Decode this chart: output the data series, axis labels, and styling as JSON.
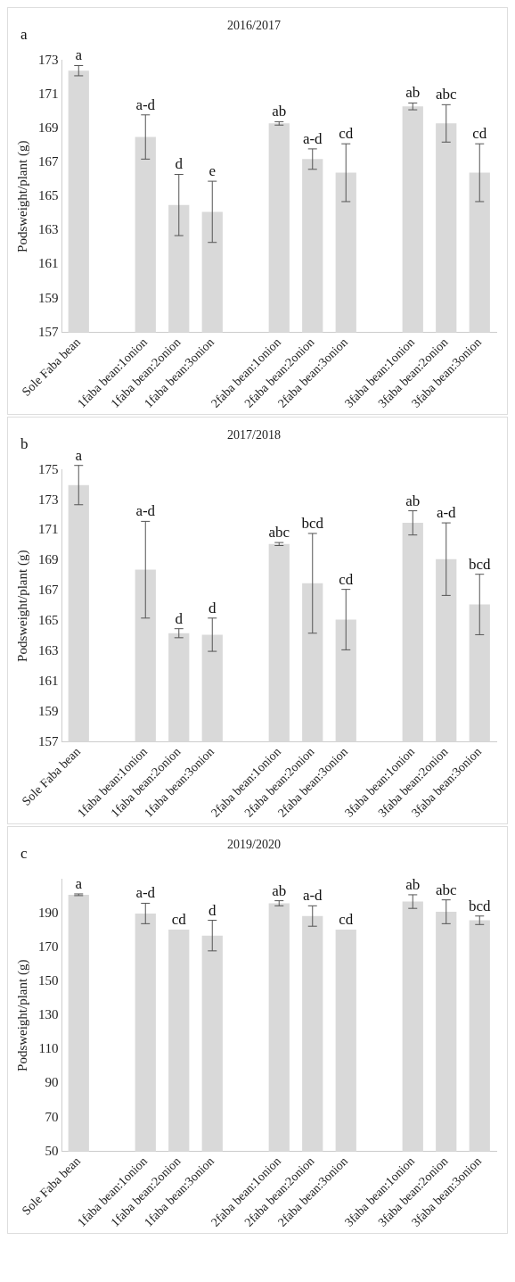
{
  "chart_data": [
    {
      "type": "bar",
      "title": "2016/2017",
      "ylabel": "Podsweight/plant (g)",
      "categories": [
        "Sole Faba bean",
        null,
        "1faba bean:1onion",
        "1faba bean:2onion",
        "1faba bean:3onion",
        null,
        "2faba bean:1onion",
        "2faba bean:2onion",
        "2faba bean:3onion",
        null,
        "3faba bean:1onion",
        "3faba bean:2onion",
        "3faba bean:3onion"
      ],
      "values": [
        172.4,
        null,
        168.5,
        164.5,
        164.1,
        null,
        169.3,
        167.2,
        166.4,
        null,
        170.3,
        169.3,
        166.4
      ],
      "errors": [
        0.3,
        null,
        1.3,
        1.8,
        1.8,
        null,
        0.1,
        0.6,
        1.7,
        null,
        0.2,
        1.1,
        1.7
      ],
      "color": "#d9d9d9",
      "ylim": [
        157,
        173
      ],
      "yticks": [
        157,
        159,
        161,
        163,
        165,
        167,
        169,
        171,
        173
      ],
      "grid": false,
      "annotations": [
        "a",
        {
          "text": "a",
          "x": "Sole Faba bean",
          "y": 172.7
        },
        {
          "text": "a-d",
          "x": "1faba bean:1onion",
          "y": 169.8
        },
        {
          "text": "d",
          "x": "1faba bean:2onion",
          "y": 166.3
        },
        {
          "text": "e",
          "x": "1faba bean:3onion",
          "y": 165.9
        },
        {
          "text": "ab",
          "x": "2faba bean:1onion",
          "y": 169.4
        },
        {
          "text": "a-d",
          "x": "2faba bean:2onion",
          "y": 167.8
        },
        {
          "text": "cd",
          "x": "2faba bean:3onion",
          "y": 168.1
        },
        {
          "text": "ab",
          "x": "3faba bean:1onion",
          "y": 170.5
        },
        {
          "text": "abc",
          "x": "3faba bean:2onion",
          "y": 170.4
        },
        {
          "text": "cd",
          "x": "3faba bean:3onion",
          "y": 168.1
        }
      ]
    },
    {
      "type": "bar",
      "title": "2017/2018",
      "ylabel": "Podsweight/plant (g)",
      "categories": [
        "Sole Faba bean",
        null,
        "1faba bean:1onion",
        "1faba bean:2onion",
        "1faba bean:3onion",
        null,
        "2faba bean:1onion",
        "2faba bean:2onion",
        "2faba bean:3onion",
        null,
        "3faba bean:1onion",
        "3faba bean:2onion",
        "3faba bean:3onion"
      ],
      "values": [
        174.0,
        null,
        168.4,
        164.2,
        164.1,
        null,
        170.1,
        167.5,
        165.1,
        null,
        171.5,
        169.1,
        166.1
      ],
      "errors": [
        1.3,
        null,
        3.2,
        0.3,
        1.1,
        null,
        0.1,
        3.3,
        2.0,
        null,
        0.8,
        2.4,
        2.0
      ],
      "color": "#d9d9d9",
      "ylim": [
        157,
        175
      ],
      "yticks": [
        157,
        159,
        161,
        163,
        165,
        167,
        169,
        171,
        173,
        175
      ],
      "grid": false,
      "annotations": [
        "b",
        {
          "text": "a",
          "x": "Sole Faba bean",
          "y": 175.3
        },
        {
          "text": "a-d",
          "x": "1faba bean:1onion",
          "y": 171.6
        },
        {
          "text": "d",
          "x": "1faba bean:2onion",
          "y": 164.5
        },
        {
          "text": "d",
          "x": "1faba bean:3onion",
          "y": 165.2
        },
        {
          "text": "abc",
          "x": "2faba bean:1onion",
          "y": 170.2
        },
        {
          "text": "bcd",
          "x": "2faba bean:2onion",
          "y": 170.8
        },
        {
          "text": "cd",
          "x": "2faba bean:3onion",
          "y": 167.1
        },
        {
          "text": "ab",
          "x": "3faba bean:1onion",
          "y": 172.3
        },
        {
          "text": "a-d",
          "x": "3faba bean:2onion",
          "y": 171.5
        },
        {
          "text": "bcd",
          "x": "3faba bean:3onion",
          "y": 168.1
        }
      ]
    },
    {
      "type": "bar",
      "title": "2019/2020",
      "ylabel": "Podsweight/plant (g)",
      "categories": [
        "Sole Faba bean",
        null,
        "1faba bean:1onion",
        "1faba bean:2onion",
        "1faba bean:3onion",
        null,
        "2faba bean:1onion",
        "2faba bean:2onion",
        "2faba bean:3onion",
        null,
        "3faba bean:1onion",
        "3faba bean:2onion",
        "3faba bean:3onion"
      ],
      "values": [
        201,
        null,
        190,
        180.5,
        177,
        null,
        196,
        188.5,
        180.5,
        null,
        197,
        191,
        186
      ],
      "errors": [
        0.5,
        null,
        6,
        null,
        9,
        null,
        1.5,
        6,
        null,
        null,
        4,
        7,
        2.5
      ],
      "color": "#d9d9d9",
      "ylim": [
        50,
        210
      ],
      "yticks": [
        50,
        70,
        90,
        110,
        130,
        150,
        170,
        190
      ],
      "grid": false,
      "annotations": [
        "c",
        {
          "text": "a",
          "x": "Sole Faba bean",
          "y": 201.5
        },
        {
          "text": "a-d",
          "x": "1faba bean:1onion",
          "y": 196
        },
        {
          "text": "cd",
          "x": "1faba bean:2onion",
          "y": 180.5
        },
        {
          "text": "d",
          "x": "1faba bean:3onion",
          "y": 186
        },
        {
          "text": "ab",
          "x": "2faba bean:1onion",
          "y": 197.5
        },
        {
          "text": "a-d",
          "x": "2faba bean:2onion",
          "y": 194.5
        },
        {
          "text": "cd",
          "x": "2faba bean:3onion",
          "y": 180.5
        },
        {
          "text": "ab",
          "x": "3faba bean:1onion",
          "y": 201
        },
        {
          "text": "abc",
          "x": "3faba bean:2onion",
          "y": 198
        },
        {
          "text": "bcd",
          "x": "3faba bean:3onion",
          "y": 188.5
        }
      ]
    }
  ]
}
